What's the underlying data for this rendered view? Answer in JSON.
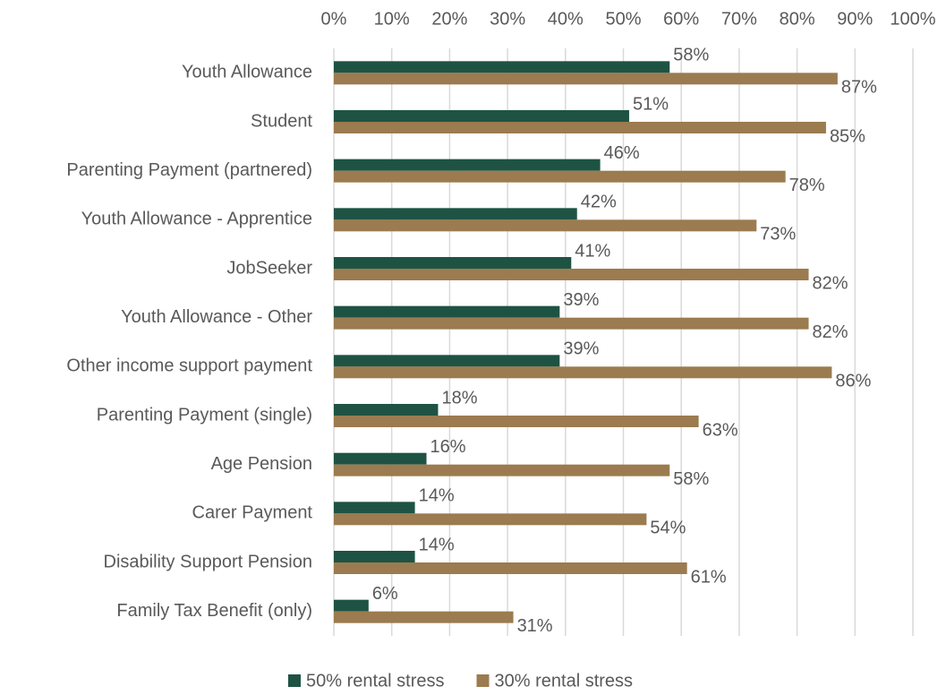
{
  "chart_data": {
    "type": "bar",
    "orientation": "horizontal",
    "categories": [
      "Youth Allowance",
      "Student",
      "Parenting Payment (partnered)",
      "Youth Allowance - Apprentice",
      "JobSeeker",
      "Youth Allowance - Other",
      "Other income support payment",
      "Parenting Payment (single)",
      "Age Pension",
      "Carer Payment",
      "Disability Support Pension",
      "Family Tax Benefit (only)"
    ],
    "series": [
      {
        "name": "50% rental stress",
        "color": "#1e5343",
        "values": [
          58,
          51,
          46,
          42,
          41,
          39,
          39,
          18,
          16,
          14,
          14,
          6
        ],
        "value_labels": [
          "58%",
          "51%",
          "46%",
          "42%",
          "41%",
          "39%",
          "39%",
          "18%",
          "16%",
          "14%",
          "14%",
          "6%"
        ]
      },
      {
        "name": "30% rental stress",
        "color": "#9b7b4f",
        "values": [
          87,
          85,
          78,
          73,
          82,
          82,
          86,
          63,
          58,
          54,
          61,
          31
        ],
        "value_labels": [
          "87%",
          "85%",
          "78%",
          "73%",
          "82%",
          "82%",
          "86%",
          "63%",
          "58%",
          "54%",
          "61%",
          "31%"
        ]
      }
    ],
    "xlim": [
      0,
      100
    ],
    "xticks": [
      {
        "value": 0,
        "label": "0%"
      },
      {
        "value": 10,
        "label": "10%"
      },
      {
        "value": 20,
        "label": "20%"
      },
      {
        "value": 30,
        "label": "30%"
      },
      {
        "value": 40,
        "label": "40%"
      },
      {
        "value": 50,
        "label": "50%"
      },
      {
        "value": 60,
        "label": "60%"
      },
      {
        "value": 70,
        "label": "70%"
      },
      {
        "value": 80,
        "label": "80%"
      },
      {
        "value": 90,
        "label": "90%"
      },
      {
        "value": 100,
        "label": "100%"
      }
    ],
    "grid": true,
    "legend": "bottom"
  }
}
